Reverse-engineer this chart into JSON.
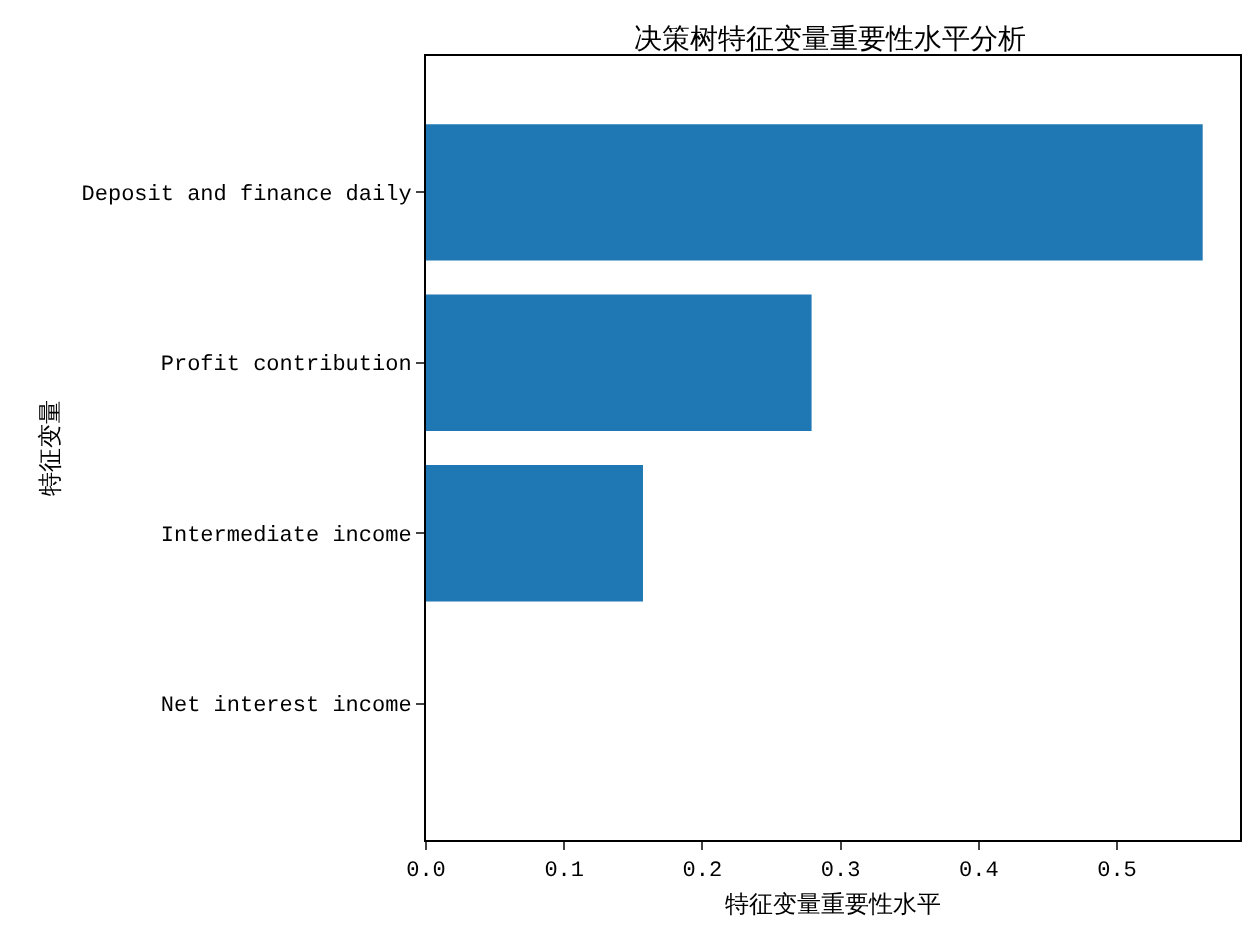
{
  "chart_data": {
    "type": "bar",
    "orientation": "horizontal",
    "title": "决策树特征变量重要性水平分析",
    "xlabel": "特征变量重要性水平",
    "ylabel": "特征变量",
    "categories": [
      "Deposit and finance daily",
      "Profit contribution",
      "Intermediate income",
      "Net interest income"
    ],
    "values": [
      0.562,
      0.279,
      0.157,
      0
    ],
    "color": "#1f77b4",
    "xlim": [
      0,
      0.589
    ],
    "xticks": [
      {
        "value": 0,
        "label": "0.0"
      },
      {
        "value": 0.1,
        "label": "0.1"
      },
      {
        "value": 0.2,
        "label": "0.2"
      },
      {
        "value": 0.3,
        "label": "0.3"
      },
      {
        "value": 0.4,
        "label": "0.4"
      },
      {
        "value": 0.5,
        "label": "0.5"
      }
    ],
    "grid": false
  }
}
